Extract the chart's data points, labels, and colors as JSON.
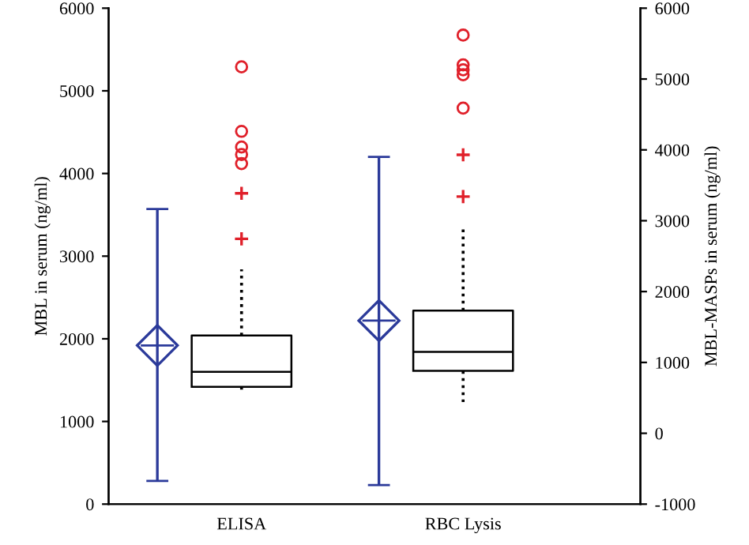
{
  "chart_data": {
    "type": "box",
    "categories": [
      "ELISA",
      "RBC Lysis"
    ],
    "ylabel": "MBL in serum (ng/ml)",
    "y2label": "MBL-MASPs in serum (ng/ml)",
    "ylim": [
      0,
      6000
    ],
    "yticks": [
      0,
      1000,
      2000,
      3000,
      4000,
      5000,
      6000
    ],
    "y2lim": [
      -1000,
      6000
    ],
    "y2ticks": [
      -1000,
      0,
      1000,
      2000,
      3000,
      4000,
      5000,
      6000
    ],
    "grid": false,
    "legend": false,
    "series": [
      {
        "axis": "y",
        "color": "#000000",
        "boxes": [
          {
            "low": 1345,
            "q1": 1420,
            "median": 1600,
            "q3": 2040,
            "high": 2840
          },
          null
        ]
      },
      {
        "axis": "y2",
        "color": "#000000",
        "boxes": [
          null,
          {
            "low": 440,
            "q1": 880,
            "median": 1150,
            "q3": 1730,
            "high": 2920
          }
        ]
      },
      {
        "type": "scatter",
        "axis": "y",
        "marker": "diamond",
        "color": "#2b3a9a",
        "values": [
          1920,
          null
        ],
        "errors": [
          [
            280,
            3570
          ],
          null
        ]
      },
      {
        "type": "scatter",
        "axis": "y2",
        "marker": "diamond",
        "color": "#2b3a9a",
        "values": [
          null,
          1590
        ],
        "errors": [
          null,
          [
            -730,
            3900
          ]
        ]
      },
      {
        "type": "scatter",
        "axis": "y",
        "marker": "cross",
        "color": "#e0202a",
        "x": [
          "ELISA",
          "ELISA"
        ],
        "values": [
          3210,
          3760
        ]
      },
      {
        "type": "scatter",
        "axis": "y",
        "marker": "circle",
        "color": "#e0202a",
        "x": [
          "ELISA",
          "ELISA",
          "ELISA",
          "ELISA",
          "ELISA"
        ],
        "values": [
          4120,
          4230,
          4320,
          4510,
          5290
        ]
      },
      {
        "type": "scatter",
        "axis": "y2",
        "marker": "cross",
        "color": "#e0202a",
        "x": [
          "RBC Lysis",
          "RBC Lysis"
        ],
        "values": [
          3340,
          3930
        ]
      },
      {
        "type": "scatter",
        "axis": "y2",
        "marker": "circle",
        "color": "#e0202a",
        "x": [
          "RBC Lysis",
          "RBC Lysis",
          "RBC Lysis",
          "RBC Lysis",
          "RBC Lysis"
        ],
        "values": [
          4590,
          5060,
          5130,
          5200,
          5620
        ]
      }
    ]
  }
}
